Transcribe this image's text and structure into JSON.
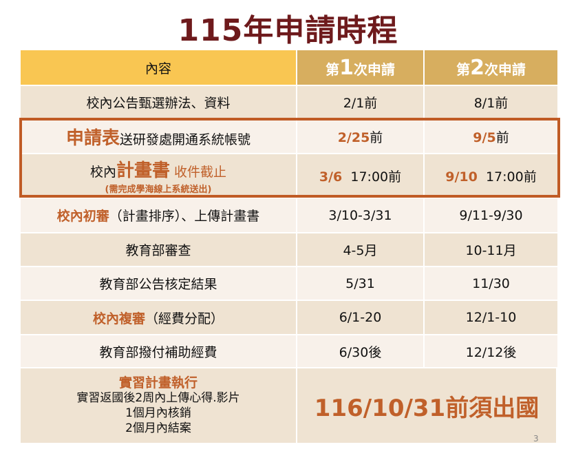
{
  "title": "115年申請時程",
  "header": {
    "content": "內容",
    "col1": {
      "pre": "第",
      "num": "1",
      "post": "次申請"
    },
    "col2": {
      "pre": "第",
      "num": "2",
      "post": "次申請"
    }
  },
  "rows": [
    {
      "item": "校內公告甄選辦法、資料",
      "r1": "2/1前",
      "r2": "8/1前"
    },
    {
      "item_em": "申請表",
      "item": "送研發處開通系統帳號",
      "r1_em": "2/25",
      "r1": "前",
      "r2_em": "9/5",
      "r2": "前"
    },
    {
      "item_pre": "校內",
      "item_em": "計畫書",
      "item_post": "收件截止",
      "item_note": "(需完成學海線上系統送出)",
      "r1_em": "3/6",
      "r1": "17:00前",
      "r2_em": "9/10",
      "r2": "17:00前"
    },
    {
      "item_em": "校內初審",
      "item": "（計畫排序）、上傳計畫書",
      "r1": "3/10-3/31",
      "r2": "9/11-9/30"
    },
    {
      "item": "教育部審查",
      "r1": "4-5月",
      "r2": "10-11月"
    },
    {
      "item": "教育部公告核定結果",
      "r1": "5/31",
      "r2": "11/30"
    },
    {
      "item_em": "校內複審",
      "item": "（經費分配）",
      "r1": "6/1-20",
      "r2": "12/1-10"
    },
    {
      "item": "教育部撥付補助經費",
      "r1": "6/30後",
      "r2": "12/12後"
    },
    {
      "item_em": "實習計畫執行",
      "lines": [
        "實習返國後2周內上傳心得.影片",
        "1個月內核銷",
        "2個月內結案"
      ],
      "merged": "116/10/31前須出國"
    }
  ],
  "page_number": "3",
  "colors": {
    "title": "#6e1a1c",
    "accent": "#c0602a",
    "header_left": "#f9c652",
    "header_right": "#d7ae5f"
  }
}
